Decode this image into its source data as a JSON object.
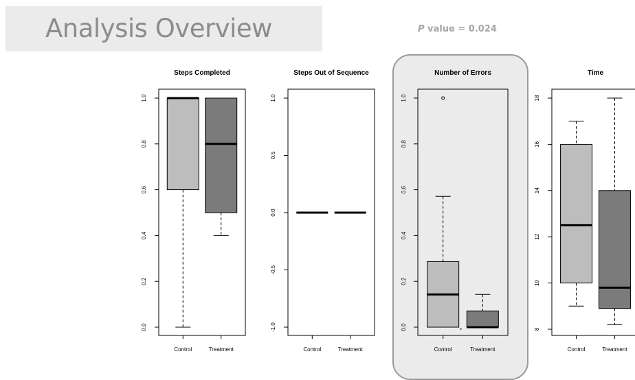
{
  "header": {
    "title": "Analysis Overview",
    "p_value_symbol": "P",
    "p_value_rest": " value = 0.024"
  },
  "colors": {
    "control_fill": "#bdbdbd",
    "treatment_fill": "#7b7b7b",
    "highlight_bg": "#ebebeb",
    "highlight_border": "#9a9a9a",
    "title_banner": "#ebebeb"
  },
  "chart_data": [
    {
      "type": "boxplot",
      "title": "Steps Completed",
      "categories": [
        "Control",
        "Treatment"
      ],
      "ylim": [
        0.0,
        1.0
      ],
      "yticks": [
        0.0,
        0.2,
        0.4,
        0.6,
        0.8,
        1.0
      ],
      "ytick_labels": [
        "0.0",
        "0.2",
        "0.4",
        "0.6",
        "0.8",
        "1.0"
      ],
      "boxes": [
        {
          "name": "Control",
          "min": 0.0,
          "q1": 0.6,
          "median": 1.0,
          "q3": 1.0,
          "max": 1.0,
          "outliers": []
        },
        {
          "name": "Treatment",
          "min": 0.4,
          "q1": 0.5,
          "median": 0.8,
          "q3": 1.0,
          "max": 1.0,
          "outliers": []
        }
      ],
      "highlighted": false
    },
    {
      "type": "boxplot",
      "title": "Steps Out of Sequence",
      "categories": [
        "Control",
        "Treatment"
      ],
      "ylim": [
        -1.0,
        1.0
      ],
      "yticks": [
        -1.0,
        -0.5,
        0.0,
        0.5,
        1.0
      ],
      "ytick_labels": [
        "-1.0",
        "-0.5",
        "0.0",
        "0.5",
        "1.0"
      ],
      "boxes": [
        {
          "name": "Control",
          "min": 0.0,
          "q1": 0.0,
          "median": 0.0,
          "q3": 0.0,
          "max": 0.0,
          "outliers": []
        },
        {
          "name": "Treatment",
          "min": 0.0,
          "q1": 0.0,
          "median": 0.0,
          "q3": 0.0,
          "max": 0.0,
          "outliers": []
        }
      ],
      "highlighted": false
    },
    {
      "type": "boxplot",
      "title": "Number of Errors",
      "categories": [
        "Control",
        "Treatment"
      ],
      "ylim": [
        0.0,
        1.0
      ],
      "yticks": [
        0.0,
        0.2,
        0.4,
        0.6,
        0.8,
        1.0
      ],
      "ytick_labels": [
        "0.0",
        "0.2",
        "0.4",
        "0.6",
        "0.8",
        "1.0"
      ],
      "boxes": [
        {
          "name": "Control",
          "min": 0.0,
          "q1": 0.0,
          "median": 0.143,
          "q3": 0.286,
          "max": 0.571,
          "outliers": [
            1.0
          ]
        },
        {
          "name": "Treatment",
          "min": 0.0,
          "q1": 0.0,
          "median": 0.0,
          "q3": 0.071,
          "max": 0.143,
          "outliers": []
        }
      ],
      "annotation": "*",
      "highlighted": true
    },
    {
      "type": "boxplot",
      "title": "Time",
      "categories": [
        "Control",
        "Treatment"
      ],
      "ylim": [
        8,
        18
      ],
      "yticks": [
        8,
        10,
        12,
        14,
        16,
        18
      ],
      "ytick_labels": [
        "8",
        "10",
        "12",
        "14",
        "16",
        "18"
      ],
      "boxes": [
        {
          "name": "Control",
          "min": 9.0,
          "q1": 10.0,
          "median": 12.5,
          "q3": 16.0,
          "max": 17.0,
          "outliers": []
        },
        {
          "name": "Treatment",
          "min": 8.2,
          "q1": 8.9,
          "median": 9.8,
          "q3": 14.0,
          "max": 18.0,
          "outliers": []
        }
      ],
      "highlighted": false
    }
  ]
}
